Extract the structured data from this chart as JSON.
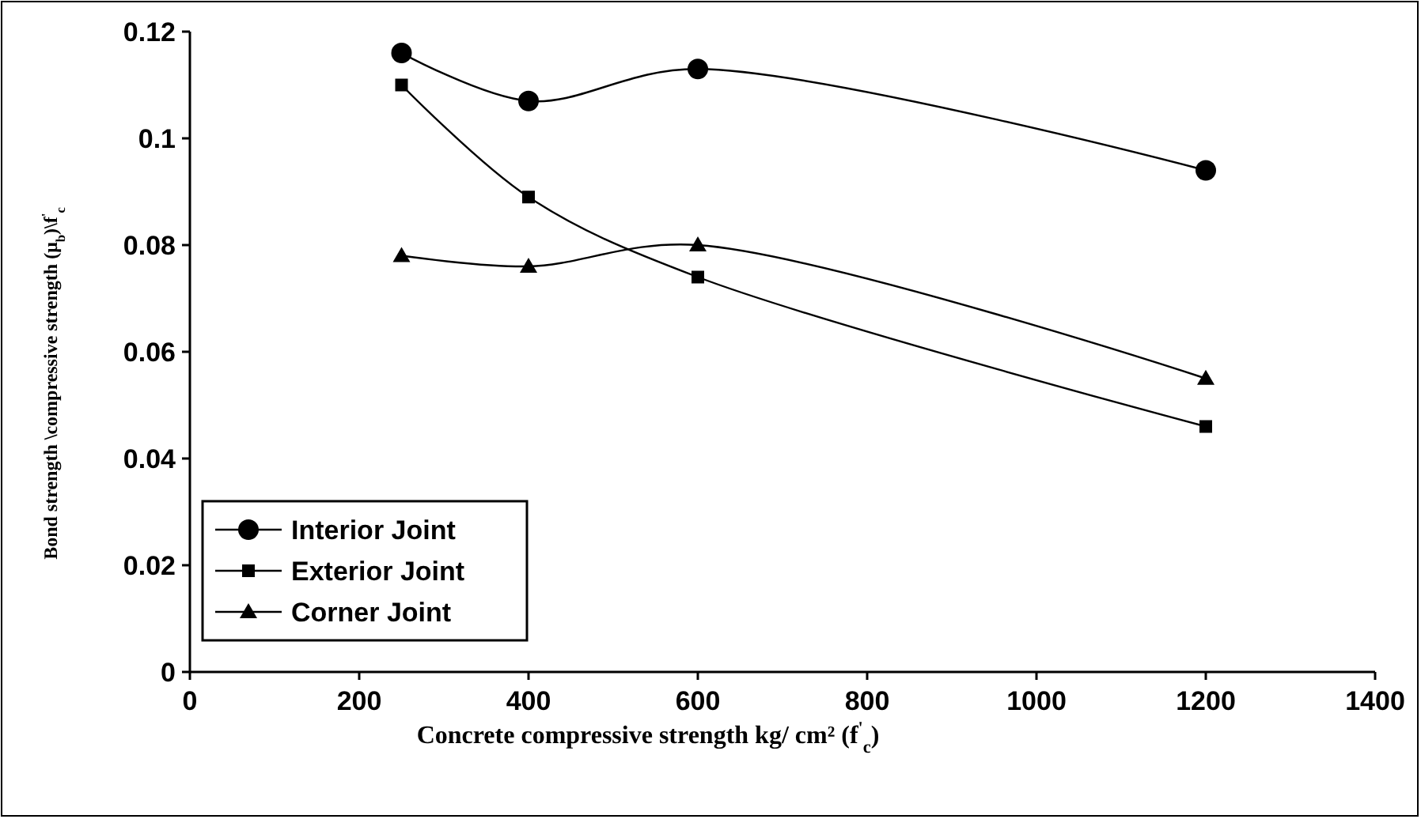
{
  "chart_data": {
    "type": "line",
    "xlabel": "Concrete compressive strength kg/ cm² (f$^{'}$$_{c}$)",
    "ylabel": "Bond strength \\compressive strength (μ$_{b}$)\\f$^{'}$$_{c}$",
    "x": [
      250,
      400,
      600,
      1200
    ],
    "series": [
      {
        "name": "Interior Joint",
        "color": "#000000",
        "marker": "circle",
        "values": [
          0.116,
          0.107,
          0.113,
          0.094
        ]
      },
      {
        "name": "Exterior Joint",
        "color": "#000000",
        "marker": "square",
        "values": [
          0.11,
          0.089,
          0.074,
          0.046
        ]
      },
      {
        "name": "Corner Joint",
        "color": "#000000",
        "marker": "triangle",
        "values": [
          0.078,
          0.076,
          0.08,
          0.055
        ]
      }
    ],
    "xlim": [
      0,
      1400
    ],
    "xticks": [
      0,
      200,
      400,
      600,
      800,
      1000,
      1200,
      1400
    ],
    "ylim": [
      0,
      0.12
    ],
    "yticks": [
      0,
      0.02,
      0.04,
      0.06,
      0.08,
      0.1,
      0.12
    ],
    "grid": false,
    "legend": "bottom left",
    "line_style": "solid"
  }
}
